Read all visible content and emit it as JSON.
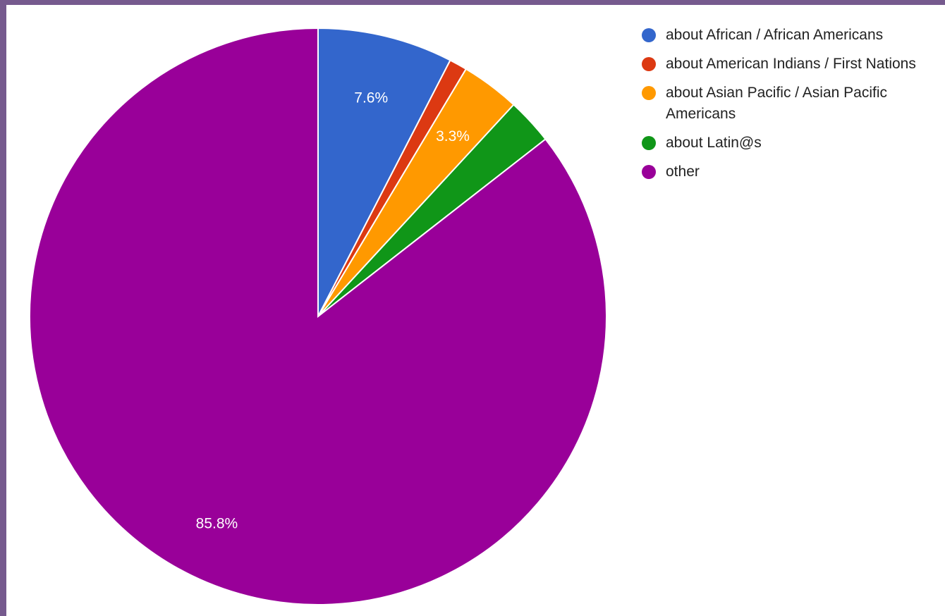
{
  "chart_data": {
    "type": "pie",
    "start_angle_deg": 0,
    "direction": "clockwise",
    "legend_position": "right",
    "slices": [
      {
        "name": "about African / African Americans",
        "value": 7.6,
        "color": "#3366cc",
        "label": "7.6%"
      },
      {
        "name": "about American Indians / First Nations",
        "value": 1.0,
        "color": "#dc3912",
        "label": ""
      },
      {
        "name": "about Asian Pacific / Asian Pacific Americans",
        "value": 3.3,
        "color": "#ff9900",
        "label": "3.3%"
      },
      {
        "name": "about Latin@s",
        "value": 2.6,
        "color": "#109618",
        "label": ""
      },
      {
        "name": "other",
        "value": 85.8,
        "color": "#990099",
        "label": "85.8%"
      }
    ]
  }
}
